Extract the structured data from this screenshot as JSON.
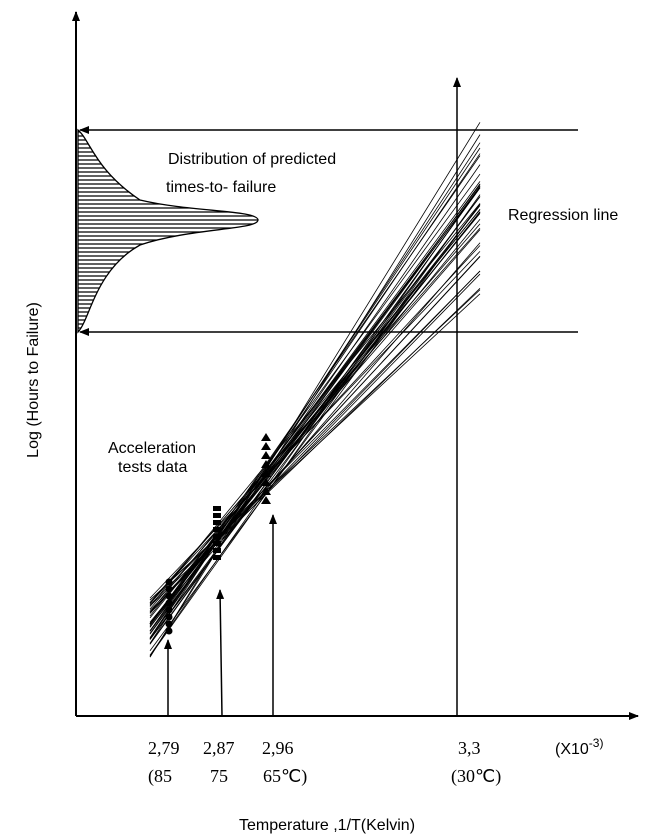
{
  "y_axis_label": "Log (Hours to Failure)",
  "x_axis_label": "Temperature ,1/T(Kelvin)",
  "annotations": {
    "distribution": [
      "Distribution of predicted",
      "times-to- failure"
    ],
    "regression": "Regression line",
    "acceleration": [
      "Acceleration",
      "tests data"
    ]
  },
  "x_ticks": [
    {
      "value": "2,79",
      "temp": "(85"
    },
    {
      "value": "2,87",
      "temp": "75"
    },
    {
      "value": "2,96",
      "temp": "65℃)"
    },
    {
      "value": "3,3",
      "temp": "(30℃)"
    }
  ],
  "x_unit": {
    "base": "(X10",
    "exponent": "-3)"
  }
}
